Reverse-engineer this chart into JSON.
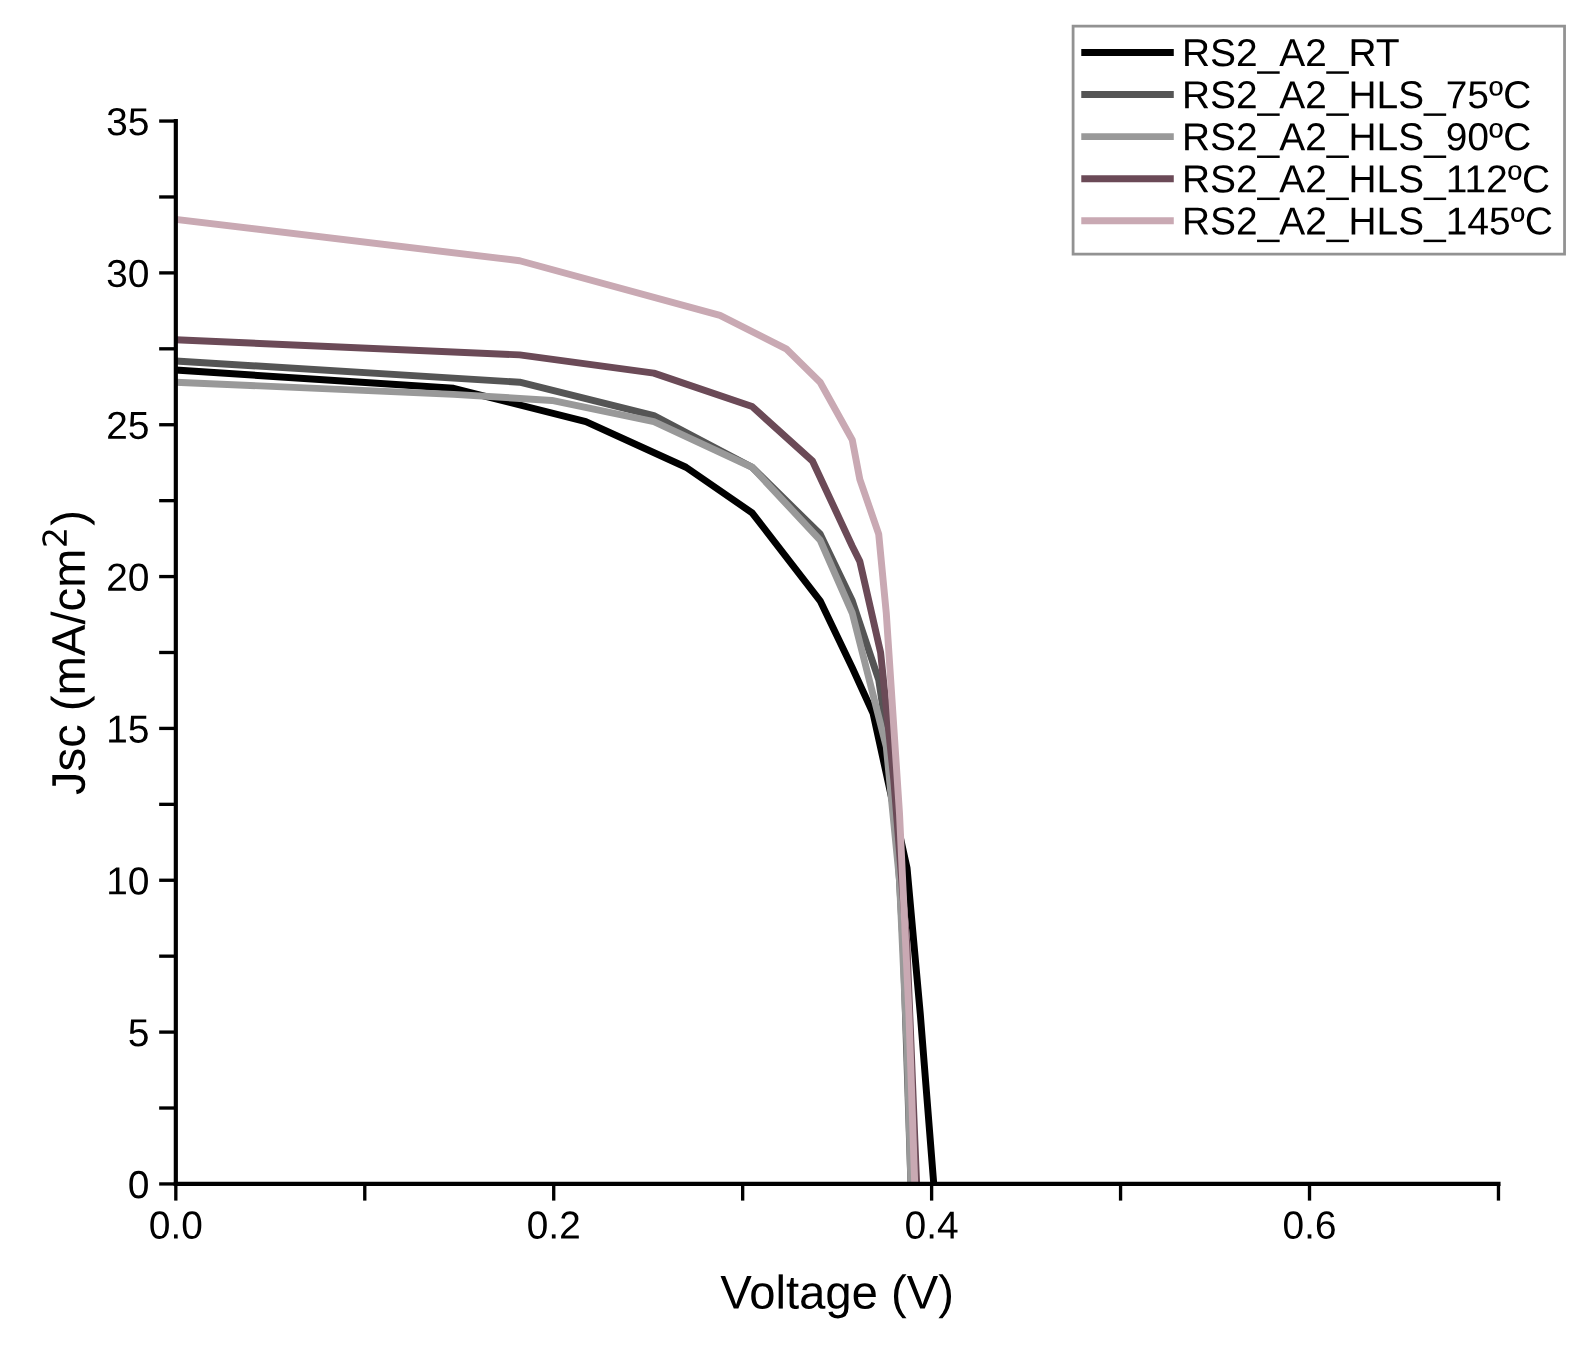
{
  "chart_data": {
    "type": "line",
    "xlabel": "Voltage (V)",
    "ylabel": "Jsc (mA/cm$^{2}$)",
    "xlim": [
      0,
      0.7
    ],
    "ylim": [
      0,
      35
    ],
    "xticks": [
      {
        "value": 0,
        "label": "0.0"
      },
      {
        "value": 0.1,
        "label": null
      },
      {
        "value": 0.2,
        "label": "0.2"
      },
      {
        "value": 0.3,
        "label": null
      },
      {
        "value": 0.4,
        "label": "0.4"
      },
      {
        "value": 0.5,
        "label": null
      },
      {
        "value": 0.6,
        "label": "0.6"
      },
      {
        "value": 0.7,
        "label": null
      }
    ],
    "yticks": [
      0,
      {
        "value": 2.5,
        "label": null
      },
      5,
      {
        "value": 7.5,
        "label": null
      },
      10,
      {
        "value": 12.5,
        "label": null
      },
      15,
      {
        "value": 17.5,
        "label": null
      },
      20,
      {
        "value": 22.5,
        "label": null
      },
      25,
      {
        "value": 27.5,
        "label": null
      },
      30,
      {
        "value": 32.5,
        "label": null
      },
      35
    ],
    "grid": false,
    "legend": "top right",
    "marker": "none",
    "line_style": "solid",
    "series": [
      {
        "name": "RS2_A2_RT",
        "color": "#000000",
        "x": [
          0,
          0.147,
          0.217,
          0.27,
          0.305,
          0.341,
          0.358,
          0.369,
          0.387,
          0.394,
          0.401
        ],
        "values": [
          26.8,
          26.2,
          25.1,
          23.6,
          22.1,
          19.2,
          17.0,
          15.5,
          10.4,
          5.6,
          0.1
        ]
      },
      {
        "name": "RS2_A2_HLS_75ºC",
        "color": "#555555",
        "x": [
          0,
          0.182,
          0.253,
          0.305,
          0.341,
          0.358,
          0.372,
          0.38,
          0.385,
          0.389
        ],
        "values": [
          27.1,
          26.4,
          25.3,
          23.6,
          21.4,
          19.2,
          16.6,
          13.3,
          7.8,
          0.1
        ]
      },
      {
        "name": "RS2_A2_HLS_90ºC",
        "color": "#999999",
        "x": [
          0,
          0.147,
          0.199,
          0.253,
          0.305,
          0.341,
          0.358,
          0.376,
          0.383,
          0.387,
          0.389
        ],
        "values": [
          26.4,
          26.0,
          25.8,
          25.1,
          23.6,
          21.2,
          18.8,
          14.4,
          10.0,
          4.5,
          0.1
        ]
      },
      {
        "name": "RS2_A2_HLS_112ºC",
        "color": "#6b4a57",
        "x": [
          0,
          0.182,
          0.253,
          0.305,
          0.337,
          0.358,
          0.362,
          0.373,
          0.38,
          0.387,
          0.392
        ],
        "values": [
          27.8,
          27.3,
          26.7,
          25.6,
          23.8,
          21.0,
          20.5,
          17.5,
          13.3,
          7.8,
          0.1
        ]
      },
      {
        "name": "RS2_A2_HLS_145ºC",
        "color": "#c9a9b3",
        "x": [
          0,
          0.182,
          0.288,
          0.323,
          0.341,
          0.358,
          0.362,
          0.372,
          0.376,
          0.383,
          0.388,
          0.391
        ],
        "values": [
          31.76,
          30.4,
          28.6,
          27.5,
          26.4,
          24.5,
          23.2,
          21.4,
          18.8,
          12.2,
          5.6,
          0.1
        ]
      }
    ]
  }
}
